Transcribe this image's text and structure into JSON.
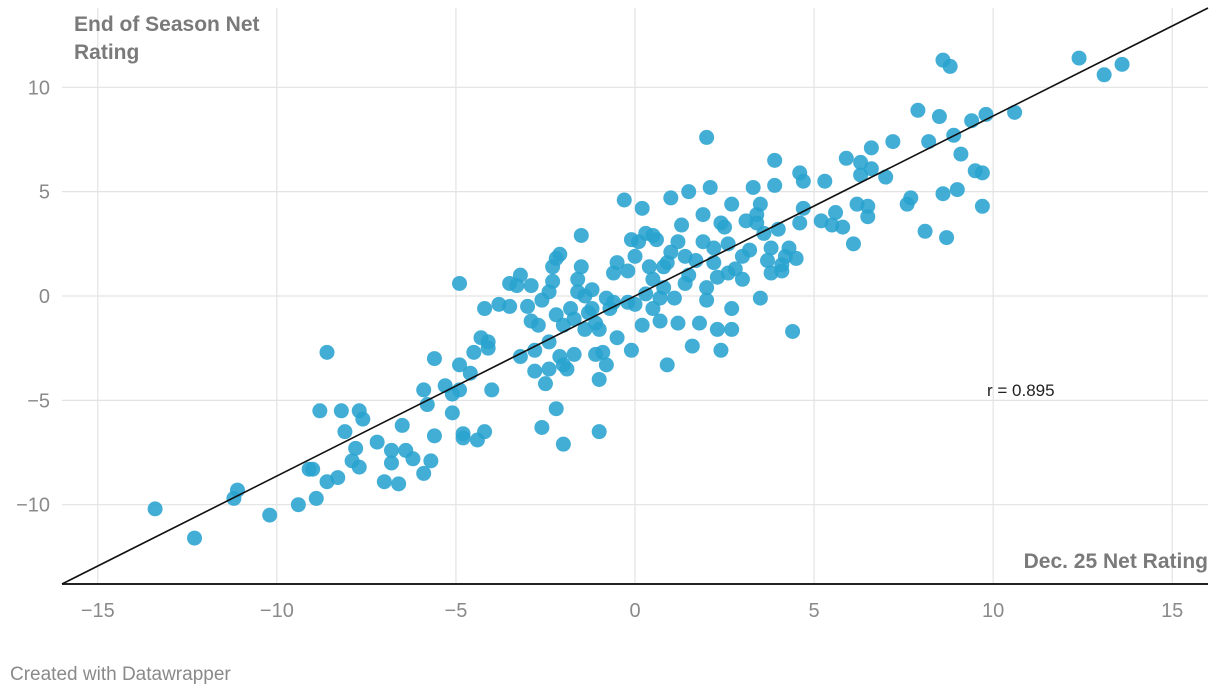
{
  "chart_data": {
    "type": "scatter",
    "ylabel": "End of Season Net Rating",
    "xlabel": "Dec. 25 Net Rating",
    "annotation": "r = 0.895",
    "xlim": [
      -16,
      16
    ],
    "ylim": [
      -13.8,
      13.8
    ],
    "x_ticks": [
      -15,
      -10,
      -5,
      0,
      5,
      10,
      15
    ],
    "x_tick_labels": [
      "−15",
      "−10",
      "−5",
      "0",
      "5",
      "10",
      "15"
    ],
    "y_ticks": [
      -10,
      -5,
      0,
      5,
      10
    ],
    "y_tick_labels": [
      "−10",
      "−5",
      "0",
      "5",
      "10"
    ],
    "grid": true,
    "point_color": "#29a3cf",
    "trendline_color": "#111111",
    "trendline": [
      [
        -16,
        -13.8
      ],
      [
        16,
        13.8
      ]
    ],
    "points": [
      [
        -13.4,
        -10.2
      ],
      [
        -12.3,
        -11.6
      ],
      [
        -11.1,
        -9.3
      ],
      [
        -11.2,
        -9.7
      ],
      [
        -10.2,
        -10.5
      ],
      [
        -9.4,
        -10.0
      ],
      [
        -8.9,
        -9.7
      ],
      [
        -9.1,
        -8.3
      ],
      [
        -9.0,
        -8.3
      ],
      [
        -8.8,
        -5.5
      ],
      [
        -8.6,
        -2.7
      ],
      [
        -8.2,
        -5.5
      ],
      [
        -8.1,
        -6.5
      ],
      [
        -8.3,
        -8.7
      ],
      [
        -8.6,
        -8.9
      ],
      [
        -7.9,
        -7.9
      ],
      [
        -7.8,
        -7.3
      ],
      [
        -7.7,
        -8.2
      ],
      [
        -7.7,
        -5.5
      ],
      [
        -7.6,
        -5.9
      ],
      [
        -7.2,
        -7.0
      ],
      [
        -7.0,
        -8.9
      ],
      [
        -6.8,
        -8.0
      ],
      [
        -6.8,
        -7.4
      ],
      [
        -6.6,
        -9.0
      ],
      [
        -6.5,
        -6.2
      ],
      [
        -6.4,
        -7.4
      ],
      [
        -6.2,
        -7.8
      ],
      [
        -5.9,
        -8.5
      ],
      [
        -5.8,
        -5.2
      ],
      [
        -5.9,
        -4.5
      ],
      [
        -5.6,
        -3.0
      ],
      [
        -5.7,
        -7.9
      ],
      [
        -5.6,
        -6.7
      ],
      [
        -5.3,
        -4.3
      ],
      [
        -5.1,
        -4.7
      ],
      [
        -4.9,
        -4.5
      ],
      [
        -5.1,
        -5.6
      ],
      [
        -4.9,
        -3.3
      ],
      [
        -4.8,
        -6.6
      ],
      [
        -4.8,
        -6.8
      ],
      [
        -4.6,
        -3.7
      ],
      [
        -4.4,
        -6.9
      ],
      [
        -4.5,
        -2.7
      ],
      [
        -4.3,
        -2.0
      ],
      [
        -4.2,
        -6.5
      ],
      [
        -4.1,
        -2.2
      ],
      [
        -4.1,
        -2.5
      ],
      [
        -4.0,
        -4.5
      ],
      [
        -4.9,
        0.6
      ],
      [
        -4.2,
        -0.6
      ],
      [
        -3.5,
        0.6
      ],
      [
        -3.5,
        -0.5
      ],
      [
        -3.3,
        0.5
      ],
      [
        -3.2,
        1.0
      ],
      [
        -3.2,
        -2.9
      ],
      [
        -3.0,
        -0.5
      ],
      [
        -2.9,
        -1.2
      ],
      [
        -2.8,
        -2.6
      ],
      [
        -2.7,
        -1.4
      ],
      [
        -2.8,
        -3.6
      ],
      [
        -2.6,
        -6.3
      ],
      [
        -2.5,
        -4.2
      ],
      [
        -2.4,
        -3.5
      ],
      [
        -2.4,
        -2.2
      ],
      [
        -2.4,
        0.2
      ],
      [
        -2.3,
        1.4
      ],
      [
        -2.2,
        1.8
      ],
      [
        -2.1,
        2.0
      ],
      [
        -2.3,
        0.7
      ],
      [
        -2.2,
        -0.9
      ],
      [
        -2.0,
        -1.4
      ],
      [
        -2.1,
        -2.9
      ],
      [
        -2.0,
        -3.3
      ],
      [
        -1.9,
        -3.5
      ],
      [
        -2.2,
        -5.4
      ],
      [
        -2.0,
        -7.1
      ],
      [
        -1.8,
        -0.6
      ],
      [
        -1.7,
        -1.1
      ],
      [
        -1.7,
        -2.8
      ],
      [
        -1.6,
        0.2
      ],
      [
        -1.5,
        1.4
      ],
      [
        -1.5,
        2.9
      ],
      [
        -1.4,
        0.0
      ],
      [
        -1.3,
        -0.8
      ],
      [
        -1.2,
        0.3
      ],
      [
        -1.1,
        -1.3
      ],
      [
        -1.0,
        -1.6
      ],
      [
        -1.1,
        -2.8
      ],
      [
        -0.9,
        -2.7
      ],
      [
        -1.0,
        -4.0
      ],
      [
        -1.0,
        -6.5
      ],
      [
        -0.8,
        -3.3
      ],
      [
        -0.8,
        -0.1
      ],
      [
        -0.7,
        -0.6
      ],
      [
        -0.6,
        -0.3
      ],
      [
        -0.6,
        1.1
      ],
      [
        -0.5,
        1.6
      ],
      [
        -0.5,
        -2.0
      ],
      [
        -0.3,
        4.6
      ],
      [
        -0.2,
        1.2
      ],
      [
        -0.1,
        -2.6
      ],
      [
        0.0,
        -0.4
      ],
      [
        0.1,
        2.6
      ],
      [
        0.0,
        1.9
      ],
      [
        0.2,
        -1.4
      ],
      [
        0.3,
        3.0
      ],
      [
        0.2,
        4.2
      ],
      [
        0.4,
        1.4
      ],
      [
        0.5,
        0.8
      ],
      [
        0.5,
        -0.6
      ],
      [
        0.6,
        2.7
      ],
      [
        0.5,
        2.9
      ],
      [
        0.7,
        -1.2
      ],
      [
        0.8,
        1.4
      ],
      [
        0.8,
        0.4
      ],
      [
        0.9,
        1.6
      ],
      [
        0.9,
        -3.3
      ],
      [
        1.0,
        2.1
      ],
      [
        1.0,
        4.7
      ],
      [
        1.1,
        -0.1
      ],
      [
        1.2,
        2.6
      ],
      [
        1.3,
        3.4
      ],
      [
        1.4,
        0.6
      ],
      [
        1.5,
        1.0
      ],
      [
        1.5,
        5.0
      ],
      [
        1.6,
        -2.4
      ],
      [
        1.7,
        1.7
      ],
      [
        1.8,
        -1.3
      ],
      [
        1.9,
        3.9
      ],
      [
        1.9,
        2.6
      ],
      [
        2.0,
        0.4
      ],
      [
        2.0,
        -0.2
      ],
      [
        2.1,
        5.2
      ],
      [
        2.2,
        1.6
      ],
      [
        2.3,
        -1.6
      ],
      [
        2.3,
        0.9
      ],
      [
        2.2,
        2.3
      ],
      [
        2.4,
        -2.6
      ],
      [
        2.4,
        3.5
      ],
      [
        2.5,
        3.3
      ],
      [
        2.6,
        2.5
      ],
      [
        2.7,
        4.4
      ],
      [
        2.7,
        -0.6
      ],
      [
        2.7,
        -1.6
      ],
      [
        2.8,
        1.3
      ],
      [
        3.0,
        0.8
      ],
      [
        3.1,
        3.6
      ],
      [
        3.2,
        2.2
      ],
      [
        3.3,
        5.2
      ],
      [
        3.4,
        3.9
      ],
      [
        3.4,
        3.5
      ],
      [
        3.5,
        -0.1
      ],
      [
        3.5,
        4.4
      ],
      [
        3.6,
        3.0
      ],
      [
        3.7,
        1.7
      ],
      [
        3.8,
        1.1
      ],
      [
        3.8,
        2.3
      ],
      [
        3.9,
        5.3
      ],
      [
        3.9,
        6.5
      ],
      [
        4.0,
        3.2
      ],
      [
        4.1,
        1.2
      ],
      [
        4.2,
        1.9
      ],
      [
        4.3,
        2.3
      ],
      [
        4.4,
        -1.7
      ],
      [
        4.5,
        1.8
      ],
      [
        4.6,
        3.5
      ],
      [
        4.6,
        5.9
      ],
      [
        4.7,
        4.2
      ],
      [
        4.7,
        5.5
      ],
      [
        5.2,
        3.6
      ],
      [
        5.3,
        5.5
      ],
      [
        5.5,
        3.4
      ],
      [
        5.6,
        4.0
      ],
      [
        5.8,
        3.3
      ],
      [
        5.9,
        6.6
      ],
      [
        6.1,
        2.5
      ],
      [
        6.2,
        4.4
      ],
      [
        6.3,
        6.4
      ],
      [
        6.3,
        5.8
      ],
      [
        6.5,
        4.3
      ],
      [
        6.5,
        3.8
      ],
      [
        6.6,
        6.1
      ],
      [
        6.6,
        7.1
      ],
      [
        7.0,
        5.7
      ],
      [
        7.2,
        7.4
      ],
      [
        7.6,
        4.4
      ],
      [
        7.7,
        4.7
      ],
      [
        7.9,
        8.9
      ],
      [
        8.1,
        3.1
      ],
      [
        8.2,
        7.4
      ],
      [
        8.5,
        8.6
      ],
      [
        8.6,
        4.9
      ],
      [
        8.7,
        2.8
      ],
      [
        8.6,
        11.3
      ],
      [
        8.8,
        11.0
      ],
      [
        8.9,
        7.7
      ],
      [
        9.0,
        5.1
      ],
      [
        9.1,
        6.8
      ],
      [
        9.4,
        8.4
      ],
      [
        9.5,
        6.0
      ],
      [
        9.7,
        5.9
      ],
      [
        9.7,
        4.3
      ],
      [
        9.8,
        8.7
      ],
      [
        10.6,
        8.8
      ],
      [
        12.4,
        11.4
      ],
      [
        13.1,
        10.6
      ],
      [
        13.6,
        11.1
      ],
      [
        2.0,
        7.6
      ],
      [
        -0.1,
        2.7
      ],
      [
        0.3,
        0.1
      ],
      [
        -1.4,
        -1.6
      ],
      [
        -2.9,
        0.5
      ],
      [
        1.4,
        1.9
      ],
      [
        3.0,
        1.9
      ],
      [
        -3.8,
        -0.4
      ],
      [
        -1.6,
        0.8
      ],
      [
        0.7,
        -0.1
      ],
      [
        -0.2,
        -0.3
      ],
      [
        1.2,
        -1.3
      ],
      [
        2.6,
        1.1
      ],
      [
        4.1,
        1.5
      ],
      [
        -2.6,
        -0.2
      ],
      [
        -1.2,
        -0.6
      ]
    ]
  },
  "credit": "Created with Datawrapper"
}
